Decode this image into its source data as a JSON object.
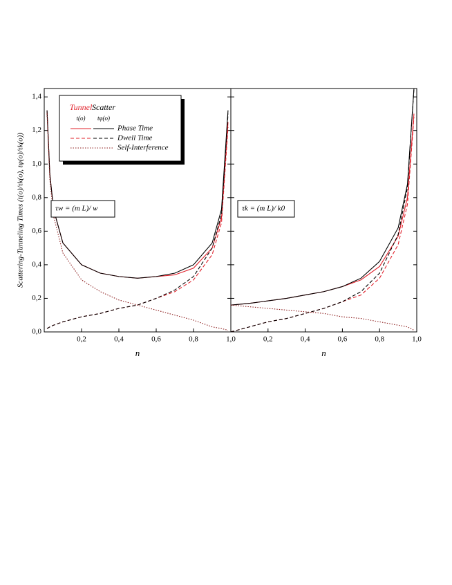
{
  "y_label": "Scattering-Tunneling Times   (t(o)/τk(o),  tφ(o)/τk(o))",
  "legend": {
    "columns": [
      "Tunnel",
      "Scatter"
    ],
    "column_symbols": [
      "t(o)",
      "tφ(o)"
    ],
    "rows": [
      "Phase Time",
      "Dwell Time",
      "Self-Interference"
    ]
  },
  "chart_data": [
    {
      "type": "line",
      "x_label": "n",
      "annotation": "τw = (m L)/ w",
      "xlim": [
        0,
        1
      ],
      "ylim": [
        0,
        1.45
      ],
      "xticks": [
        {
          "value": 0.2,
          "label": "0,2"
        },
        {
          "value": 0.4,
          "label": "0,4"
        },
        {
          "value": 0.6,
          "label": "0,6"
        },
        {
          "value": 0.8,
          "label": "0,8"
        },
        {
          "value": 1,
          "label": "1,0"
        }
      ],
      "yticks": [
        {
          "value": 0,
          "label": "0,0"
        },
        {
          "value": 0.2,
          "label": "0,2"
        },
        {
          "value": 0.4,
          "label": "0,4"
        },
        {
          "value": 0.6,
          "label": "0,6"
        },
        {
          "value": 0.8,
          "label": "0,8"
        },
        {
          "value": 1,
          "label": "1,0"
        },
        {
          "value": 1.2,
          "label": "1,2"
        },
        {
          "value": 1.4,
          "label": "1,4"
        }
      ],
      "x": [
        0.015,
        0.03,
        0.05,
        0.1,
        0.2,
        0.3,
        0.4,
        0.5,
        0.6,
        0.7,
        0.8,
        0.9,
        0.95,
        0.985
      ],
      "series": [
        {
          "color": "#e0202a",
          "dash": "solid",
          "values": [
            1.32,
            0.94,
            0.73,
            0.53,
            0.4,
            0.35,
            0.33,
            0.32,
            0.33,
            0.34,
            0.38,
            0.5,
            0.68,
            1.25
          ]
        },
        {
          "color": "#000000",
          "dash": "solid",
          "values": [
            1.32,
            0.94,
            0.73,
            0.53,
            0.4,
            0.35,
            0.33,
            0.32,
            0.33,
            0.35,
            0.4,
            0.53,
            0.73,
            1.32
          ]
        },
        {
          "color": "#e0202a",
          "dash": "dashed",
          "values": [
            0.02,
            0.03,
            0.04,
            0.06,
            0.09,
            0.11,
            0.14,
            0.16,
            0.2,
            0.24,
            0.31,
            0.46,
            0.65,
            1.22
          ]
        },
        {
          "color": "#000000",
          "dash": "dashed",
          "values": [
            0.02,
            0.03,
            0.04,
            0.06,
            0.09,
            0.11,
            0.14,
            0.16,
            0.2,
            0.25,
            0.33,
            0.5,
            0.7,
            1.3
          ]
        },
        {
          "color": "#8b1a1a",
          "dash": "dotted",
          "values": [
            1.3,
            0.91,
            0.69,
            0.47,
            0.31,
            0.24,
            0.19,
            0.16,
            0.13,
            0.1,
            0.07,
            0.03,
            0.02,
            0.01
          ]
        }
      ]
    },
    {
      "type": "line",
      "x_label": "n",
      "annotation": "τk = (m L)/ k0",
      "xlim": [
        0,
        1
      ],
      "ylim": [
        0,
        1.45
      ],
      "xticks": [
        {
          "value": 0.2,
          "label": "0,2"
        },
        {
          "value": 0.4,
          "label": "0,4"
        },
        {
          "value": 0.6,
          "label": "0,6"
        },
        {
          "value": 0.8,
          "label": "0,8"
        },
        {
          "value": 1,
          "label": "1,0"
        }
      ],
      "x": [
        0,
        0.1,
        0.2,
        0.3,
        0.4,
        0.5,
        0.6,
        0.7,
        0.8,
        0.9,
        0.95,
        0.985
      ],
      "series": [
        {
          "color": "#e0202a",
          "dash": "solid",
          "values": [
            0.16,
            0.17,
            0.185,
            0.2,
            0.22,
            0.24,
            0.27,
            0.31,
            0.39,
            0.57,
            0.8,
            1.3
          ]
        },
        {
          "color": "#000000",
          "dash": "solid",
          "values": [
            0.16,
            0.17,
            0.185,
            0.2,
            0.22,
            0.24,
            0.27,
            0.32,
            0.42,
            0.62,
            0.88,
            1.45
          ]
        },
        {
          "color": "#e0202a",
          "dash": "dashed",
          "values": [
            0,
            0.03,
            0.06,
            0.08,
            0.11,
            0.14,
            0.18,
            0.22,
            0.32,
            0.52,
            0.76,
            1.28
          ]
        },
        {
          "color": "#000000",
          "dash": "dashed",
          "values": [
            0,
            0.03,
            0.06,
            0.08,
            0.11,
            0.14,
            0.18,
            0.24,
            0.35,
            0.58,
            0.86,
            1.45
          ]
        },
        {
          "color": "#8b1a1a",
          "dash": "dotted",
          "values": [
            0.16,
            0.15,
            0.14,
            0.13,
            0.12,
            0.11,
            0.09,
            0.08,
            0.06,
            0.04,
            0.03,
            0.01
          ]
        }
      ]
    }
  ]
}
